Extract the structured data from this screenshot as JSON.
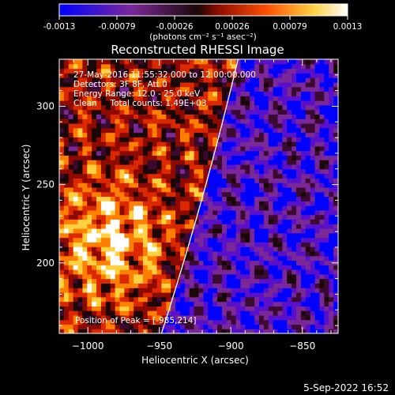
{
  "colorbar": {
    "ticks": [
      "-0.0013",
      "-0.00079",
      "-0.00026",
      "0.00026",
      "0.00079",
      "0.0013"
    ],
    "units": "(photons cm⁻² s⁻¹ asec⁻²)"
  },
  "chart_data": {
    "type": "heatmap",
    "title": "Reconstructed RHESSI Image",
    "xlabel": "Heliocentric X (arcsec)",
    "ylabel": "Heliocentric Y (arcsec)",
    "xlim": [
      -1020,
      -825
    ],
    "ylim": [
      155,
      330
    ],
    "x_ticks": [
      -1000,
      -950,
      -900,
      -850
    ],
    "y_ticks": [
      200,
      250,
      300
    ],
    "x_tick_labels": [
      "−1000",
      "−950",
      "−900",
      "−850"
    ],
    "y_tick_labels": [
      "200",
      "250",
      "300"
    ],
    "color_range": [
      -0.0013,
      0.0013
    ],
    "colormap": [
      "#0000ff",
      "#5a10c8",
      "#7a2898",
      "#3a0a30",
      "#1a0808",
      "#8c0a00",
      "#dc2800",
      "#ff8000",
      "#ffd040",
      "#ffffff"
    ],
    "annotations": [
      "27-May-2016 11:55:32.000 to 12:00:00.000",
      "Detectors: 3F 8F, Att 0",
      "Energy Range: 12.0 - 25.0 keV",
      "Clean     Total counts: 1.49E+03"
    ],
    "peak_text": "Position of Peak = [-985,214]",
    "peak": [
      -985,
      214
    ],
    "limb_color": "#ffffff"
  },
  "footer": {
    "timestamp": "5-Sep-2022 16:52"
  }
}
